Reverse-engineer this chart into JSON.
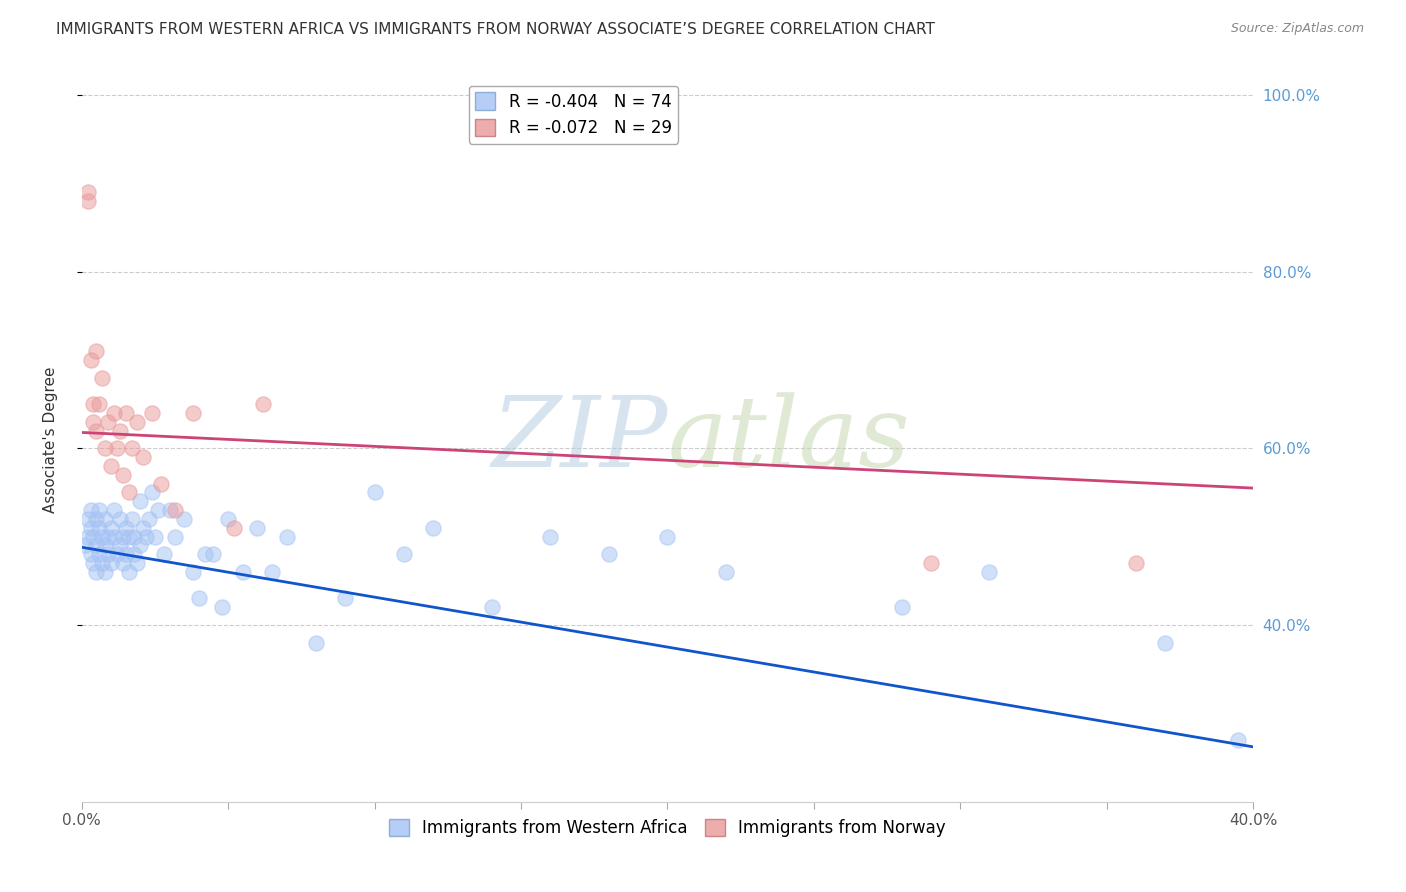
{
  "title": "IMMIGRANTS FROM WESTERN AFRICA VS IMMIGRANTS FROM NORWAY ASSOCIATE’S DEGREE CORRELATION CHART",
  "source": "Source: ZipAtlas.com",
  "ylabel": "Associate's Degree",
  "x_min": 0.0,
  "x_max": 0.4,
  "y_min": 0.2,
  "y_max": 1.02,
  "right_y_ticks": [
    0.4,
    0.6,
    0.8,
    1.0
  ],
  "right_y_tick_labels": [
    "40.0%",
    "60.0%",
    "80.0%",
    "100.0%"
  ],
  "legend_entries": [
    {
      "label": "R = -0.404   N = 74",
      "color": "#a4c2f4"
    },
    {
      "label": "R = -0.072   N = 29",
      "color": "#ea9999"
    }
  ],
  "blue_scatter_x": [
    0.001,
    0.002,
    0.002,
    0.003,
    0.003,
    0.003,
    0.004,
    0.004,
    0.005,
    0.005,
    0.005,
    0.006,
    0.006,
    0.006,
    0.007,
    0.007,
    0.008,
    0.008,
    0.008,
    0.009,
    0.009,
    0.01,
    0.01,
    0.011,
    0.011,
    0.012,
    0.013,
    0.013,
    0.014,
    0.014,
    0.015,
    0.015,
    0.016,
    0.016,
    0.017,
    0.018,
    0.018,
    0.019,
    0.02,
    0.02,
    0.021,
    0.022,
    0.023,
    0.024,
    0.025,
    0.026,
    0.028,
    0.03,
    0.032,
    0.035,
    0.038,
    0.04,
    0.042,
    0.045,
    0.048,
    0.05,
    0.055,
    0.06,
    0.065,
    0.07,
    0.08,
    0.09,
    0.1,
    0.11,
    0.12,
    0.14,
    0.16,
    0.18,
    0.2,
    0.22,
    0.28,
    0.31,
    0.37,
    0.395
  ],
  "blue_scatter_y": [
    0.49,
    0.5,
    0.52,
    0.48,
    0.51,
    0.53,
    0.47,
    0.5,
    0.49,
    0.52,
    0.46,
    0.51,
    0.48,
    0.53,
    0.5,
    0.47,
    0.49,
    0.52,
    0.46,
    0.5,
    0.48,
    0.51,
    0.47,
    0.5,
    0.53,
    0.48,
    0.49,
    0.52,
    0.47,
    0.5,
    0.48,
    0.51,
    0.5,
    0.46,
    0.52,
    0.48,
    0.5,
    0.47,
    0.54,
    0.49,
    0.51,
    0.5,
    0.52,
    0.55,
    0.5,
    0.53,
    0.48,
    0.53,
    0.5,
    0.52,
    0.46,
    0.43,
    0.48,
    0.48,
    0.42,
    0.52,
    0.46,
    0.51,
    0.46,
    0.5,
    0.38,
    0.43,
    0.55,
    0.48,
    0.51,
    0.42,
    0.5,
    0.48,
    0.5,
    0.46,
    0.42,
    0.46,
    0.38,
    0.27
  ],
  "pink_scatter_x": [
    0.002,
    0.002,
    0.003,
    0.004,
    0.004,
    0.005,
    0.005,
    0.006,
    0.007,
    0.008,
    0.009,
    0.01,
    0.011,
    0.012,
    0.013,
    0.014,
    0.015,
    0.016,
    0.017,
    0.019,
    0.021,
    0.024,
    0.027,
    0.032,
    0.038,
    0.052,
    0.062,
    0.29,
    0.36
  ],
  "pink_scatter_y": [
    0.88,
    0.89,
    0.7,
    0.65,
    0.63,
    0.71,
    0.62,
    0.65,
    0.68,
    0.6,
    0.63,
    0.58,
    0.64,
    0.6,
    0.62,
    0.57,
    0.64,
    0.55,
    0.6,
    0.63,
    0.59,
    0.64,
    0.56,
    0.53,
    0.64,
    0.51,
    0.65,
    0.47,
    0.47
  ],
  "blue_line_x": [
    0.0,
    0.4
  ],
  "blue_line_y": [
    0.488,
    0.262
  ],
  "pink_line_x": [
    0.0,
    0.4
  ],
  "pink_line_y": [
    0.618,
    0.555
  ],
  "blue_color": "#a4c2f4",
  "pink_color": "#ea9999",
  "blue_line_color": "#1155cc",
  "pink_line_color": "#cc4477",
  "watermark_zip": "ZIP",
  "watermark_atlas": "atlas",
  "background_color": "#ffffff",
  "title_fontsize": 11,
  "axis_label_fontsize": 11,
  "tick_fontsize": 11,
  "legend_fontsize": 12,
  "marker_size": 120,
  "marker_alpha": 0.5,
  "line_width": 2.0
}
